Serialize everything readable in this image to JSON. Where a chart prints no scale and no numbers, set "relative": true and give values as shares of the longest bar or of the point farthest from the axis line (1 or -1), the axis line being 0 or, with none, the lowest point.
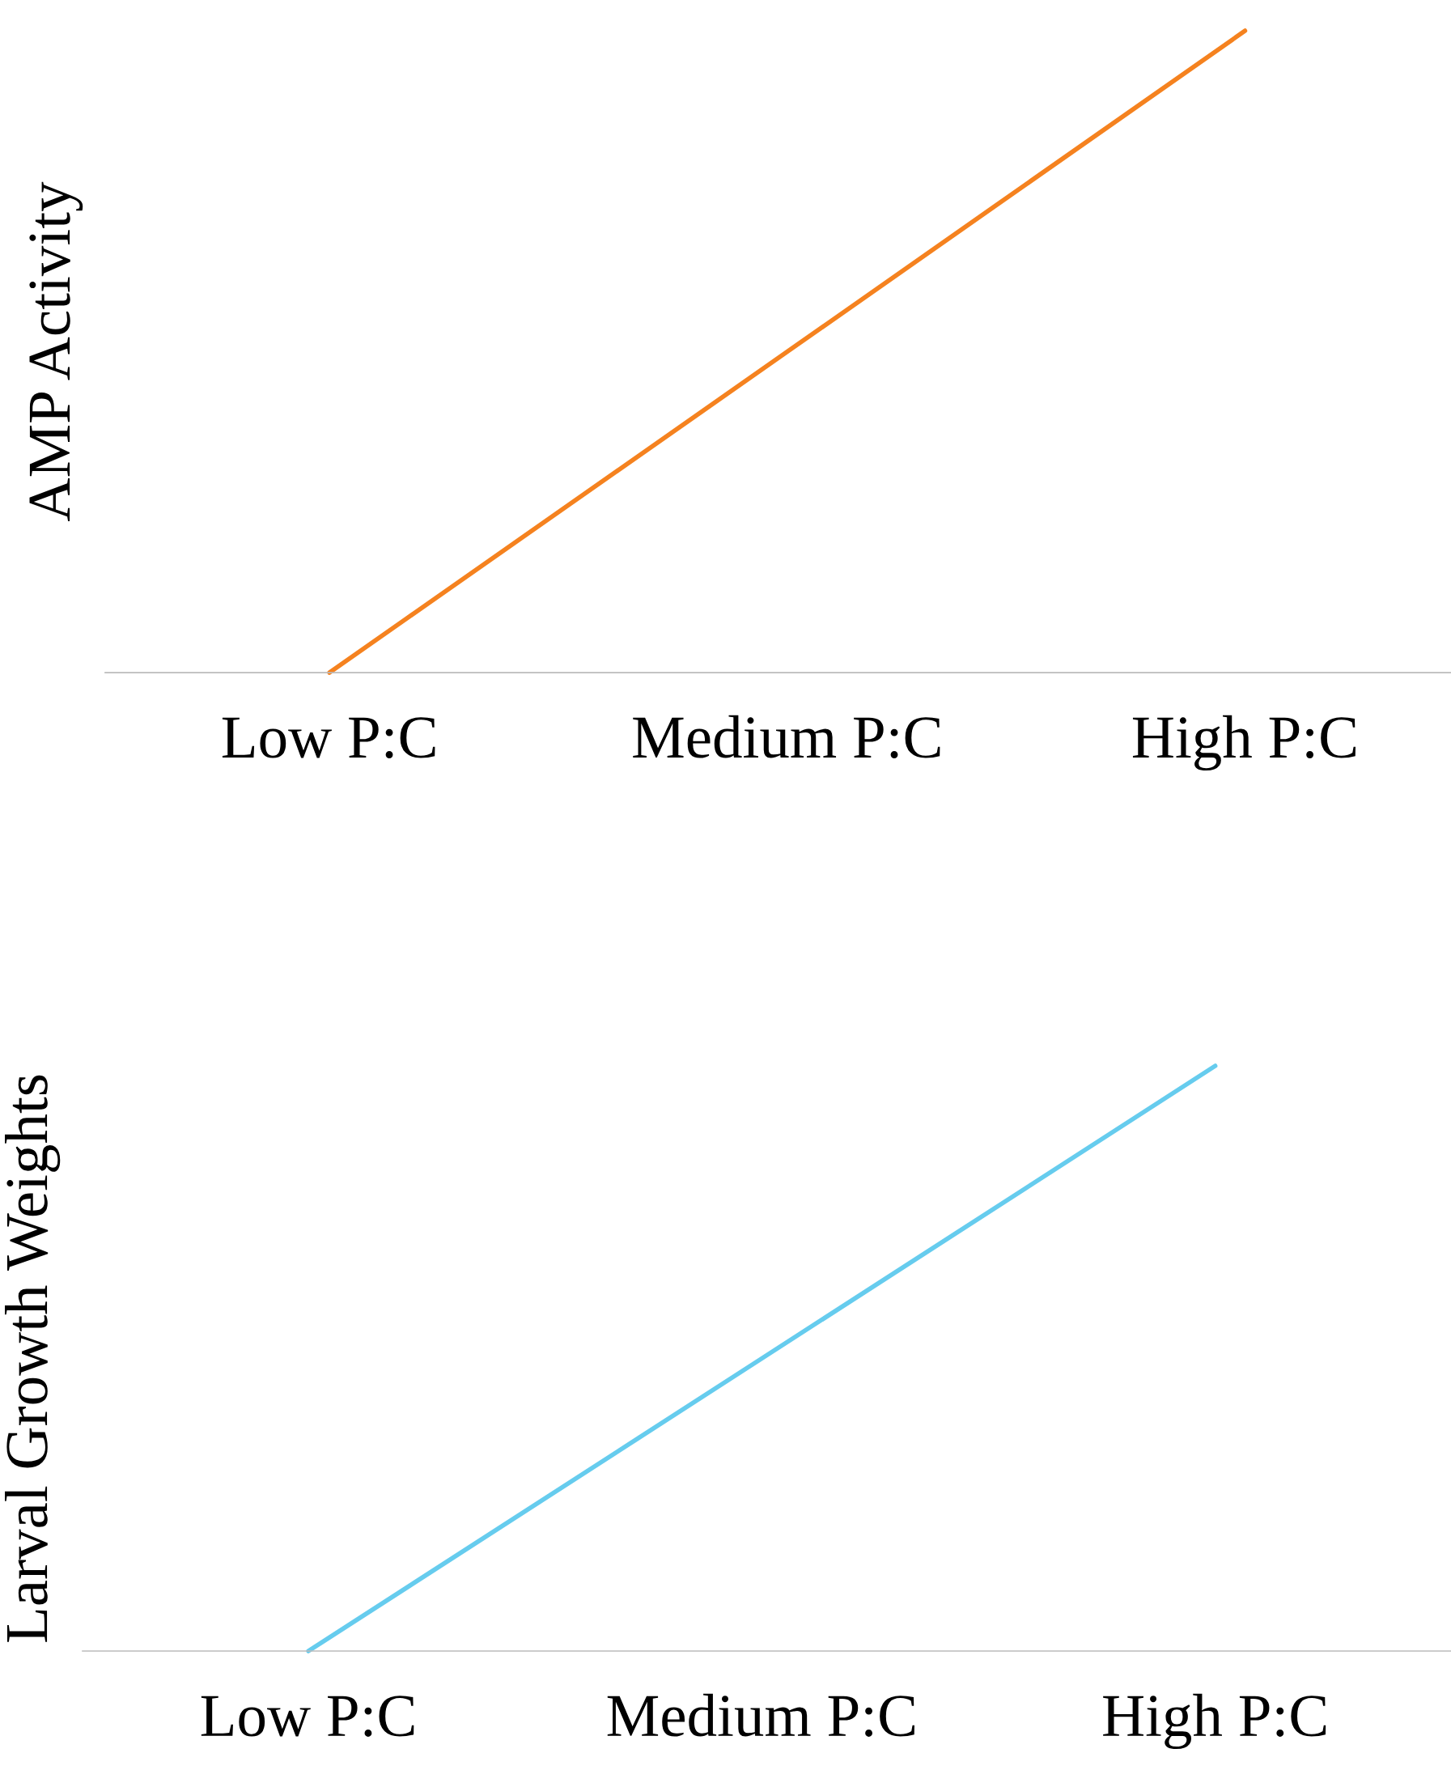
{
  "chart_data": [
    {
      "type": "line",
      "ylabel": "AMP Activity",
      "categories": [
        "Low P:C",
        "Medium P:C",
        "High P:C"
      ],
      "relative": true,
      "grid": false,
      "legend": false,
      "series": [
        {
          "color": "#f5821f",
          "values": [
            0,
            0.5,
            1
          ]
        }
      ]
    },
    {
      "type": "line",
      "ylabel": "Larval Growth Weights",
      "categories": [
        "Low P:C",
        "Medium P:C",
        "High P:C"
      ],
      "relative": true,
      "grid": false,
      "legend": false,
      "series": [
        {
          "color": "#66ccee",
          "values": [
            0,
            0.5,
            1
          ]
        }
      ]
    }
  ]
}
